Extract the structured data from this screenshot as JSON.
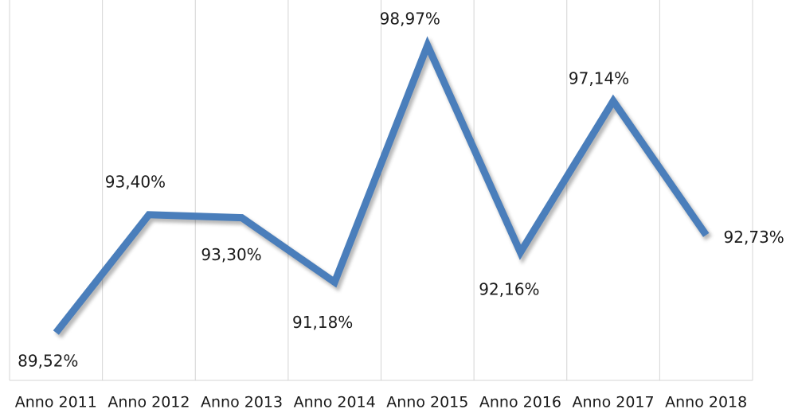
{
  "chart_data": {
    "type": "line",
    "categories": [
      "Anno 2011",
      "Anno 2012",
      "Anno 2013",
      "Anno 2014",
      "Anno 2015",
      "Anno 2016",
      "Anno 2017",
      "Anno 2018"
    ],
    "series": [
      {
        "color": "#4a7ebb",
        "values": [
          89.52,
          93.4,
          93.3,
          91.18,
          98.97,
          92.16,
          97.14,
          92.73
        ],
        "value_labels": [
          "89,52%",
          "93,40%",
          "93,30%",
          "91,18%",
          "98,97%",
          "92,16%",
          "97,14%",
          "92,73%"
        ]
      }
    ],
    "grid": true
  }
}
